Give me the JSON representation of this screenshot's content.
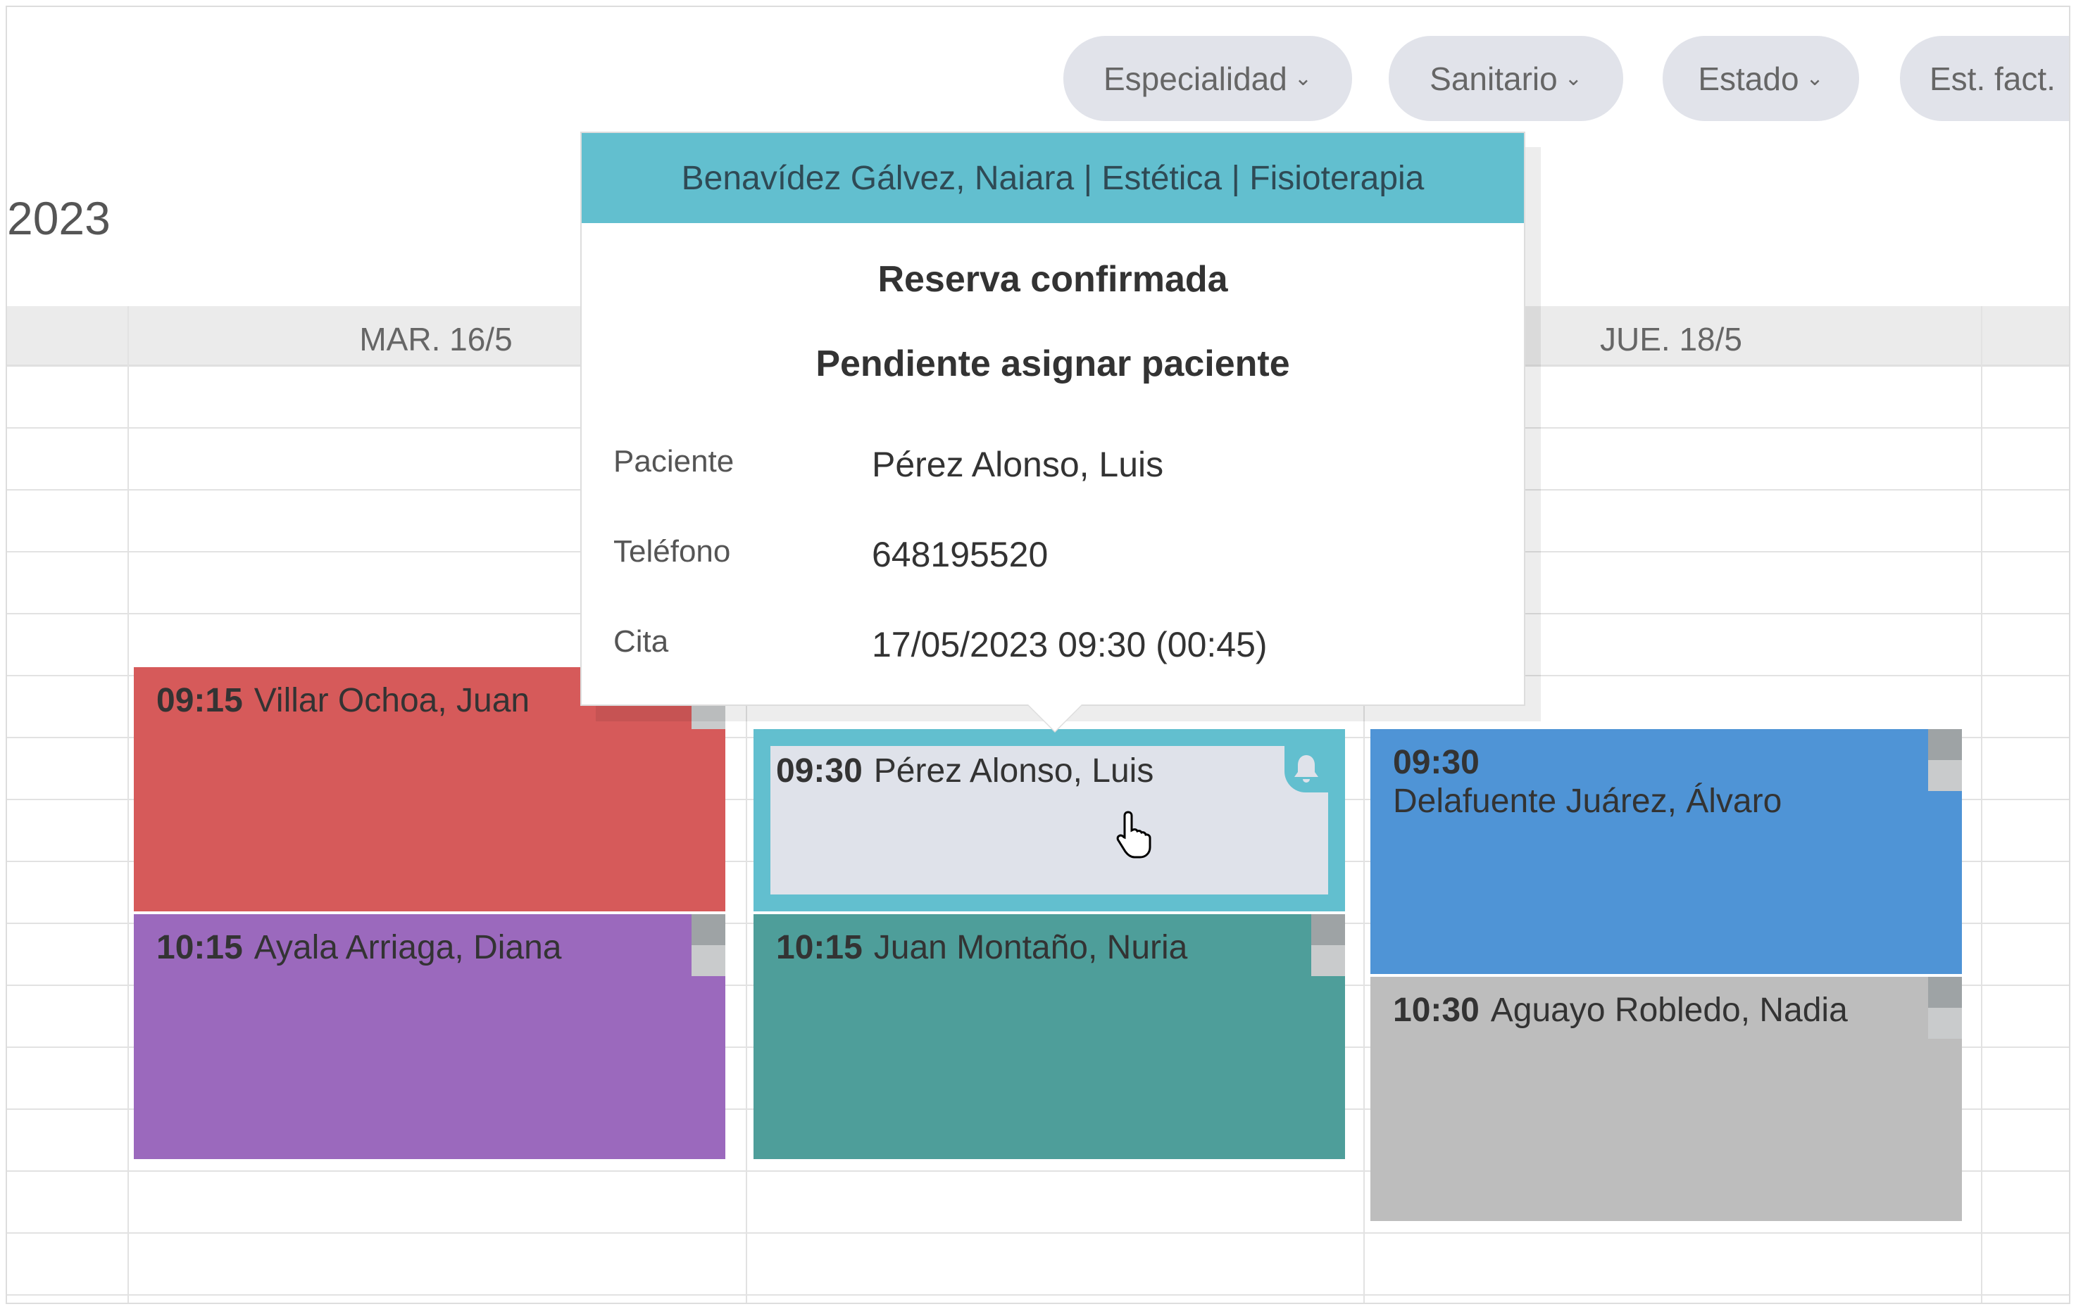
{
  "filters": [
    {
      "label": "Especialidad",
      "icon": "chevron-down-icon"
    },
    {
      "label": "Sanitario",
      "icon": "chevron-down-icon"
    },
    {
      "label": "Estado",
      "icon": "chevron-down-icon"
    },
    {
      "label": "Est. fact."
    }
  ],
  "title_partial": "2023",
  "days": [
    {
      "label": "MAR. 16/5"
    },
    {
      "label": "JUE. 18/5"
    }
  ],
  "events": [
    {
      "time": "09:15",
      "name": "Villar Ochoa, Juan",
      "color": "#d65a5a"
    },
    {
      "time": "10:15",
      "name": "Ayala Arriaga, Diana",
      "color": "#9b69bd"
    },
    {
      "time": "09:30",
      "name": "Pérez Alonso, Luis",
      "color": "#dfe2ea",
      "border": "#62bfcf",
      "icon": "bell-icon"
    },
    {
      "time": "10:15",
      "name": "Juan Montaño, Nuria",
      "color": "#4e9e9a"
    },
    {
      "time": "09:30",
      "name": "Delafuente Juárez, Álvaro",
      "color": "#4f94d6"
    },
    {
      "time": "10:30",
      "name": "Aguayo Robledo, Nadia",
      "color": "#bdbdbd"
    }
  ],
  "popover": {
    "header": "Benavídez Gálvez, Naiara | Estética | Fisioterapia",
    "status": "Reserva confirmada",
    "substatus": "Pendiente asignar paciente",
    "rows": [
      {
        "label": "Paciente",
        "value": "Pérez Alonso, Luis"
      },
      {
        "label": "Teléfono",
        "value": "648195520"
      },
      {
        "label": "Cita",
        "value": "17/05/2023 09:30 (00:45)"
      }
    ]
  }
}
